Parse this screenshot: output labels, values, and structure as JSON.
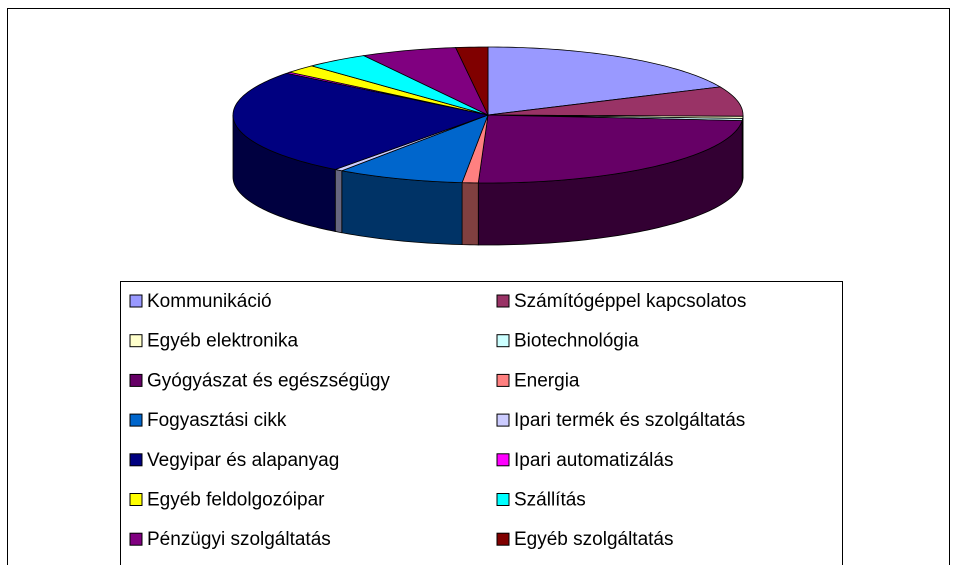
{
  "chart_data": {
    "type": "pie3d",
    "categories": [
      "Kommunikáció",
      "Számítógéppel kapcsolatos",
      "Egyéb elektronika",
      "Biotechnológia",
      "Gyógyászat és egészségügy",
      "Energia",
      "Fogyasztási cikk",
      "Ipari termék és szolgáltatás",
      "Vegyipar és alapanyag",
      "Ipari automatizálás",
      "Egyéb feldolgozóipar",
      "Szállítás",
      "Pénzügyi szolgáltatás",
      "Egyéb szolgáltatás"
    ],
    "values": [
      18,
      7,
      0.5,
      0.5,
      24,
      1,
      8,
      0.5,
      25,
      0.3,
      2,
      4,
      6,
      2
    ],
    "colors": [
      "#9999ff",
      "#993366",
      "#ffffcc",
      "#ccffff",
      "#660066",
      "#ff8080",
      "#0066cc",
      "#ccccff",
      "#000080",
      "#ff00ff",
      "#ffff00",
      "#00ffff",
      "#800080",
      "#800000"
    ],
    "legend": "bottom"
  }
}
